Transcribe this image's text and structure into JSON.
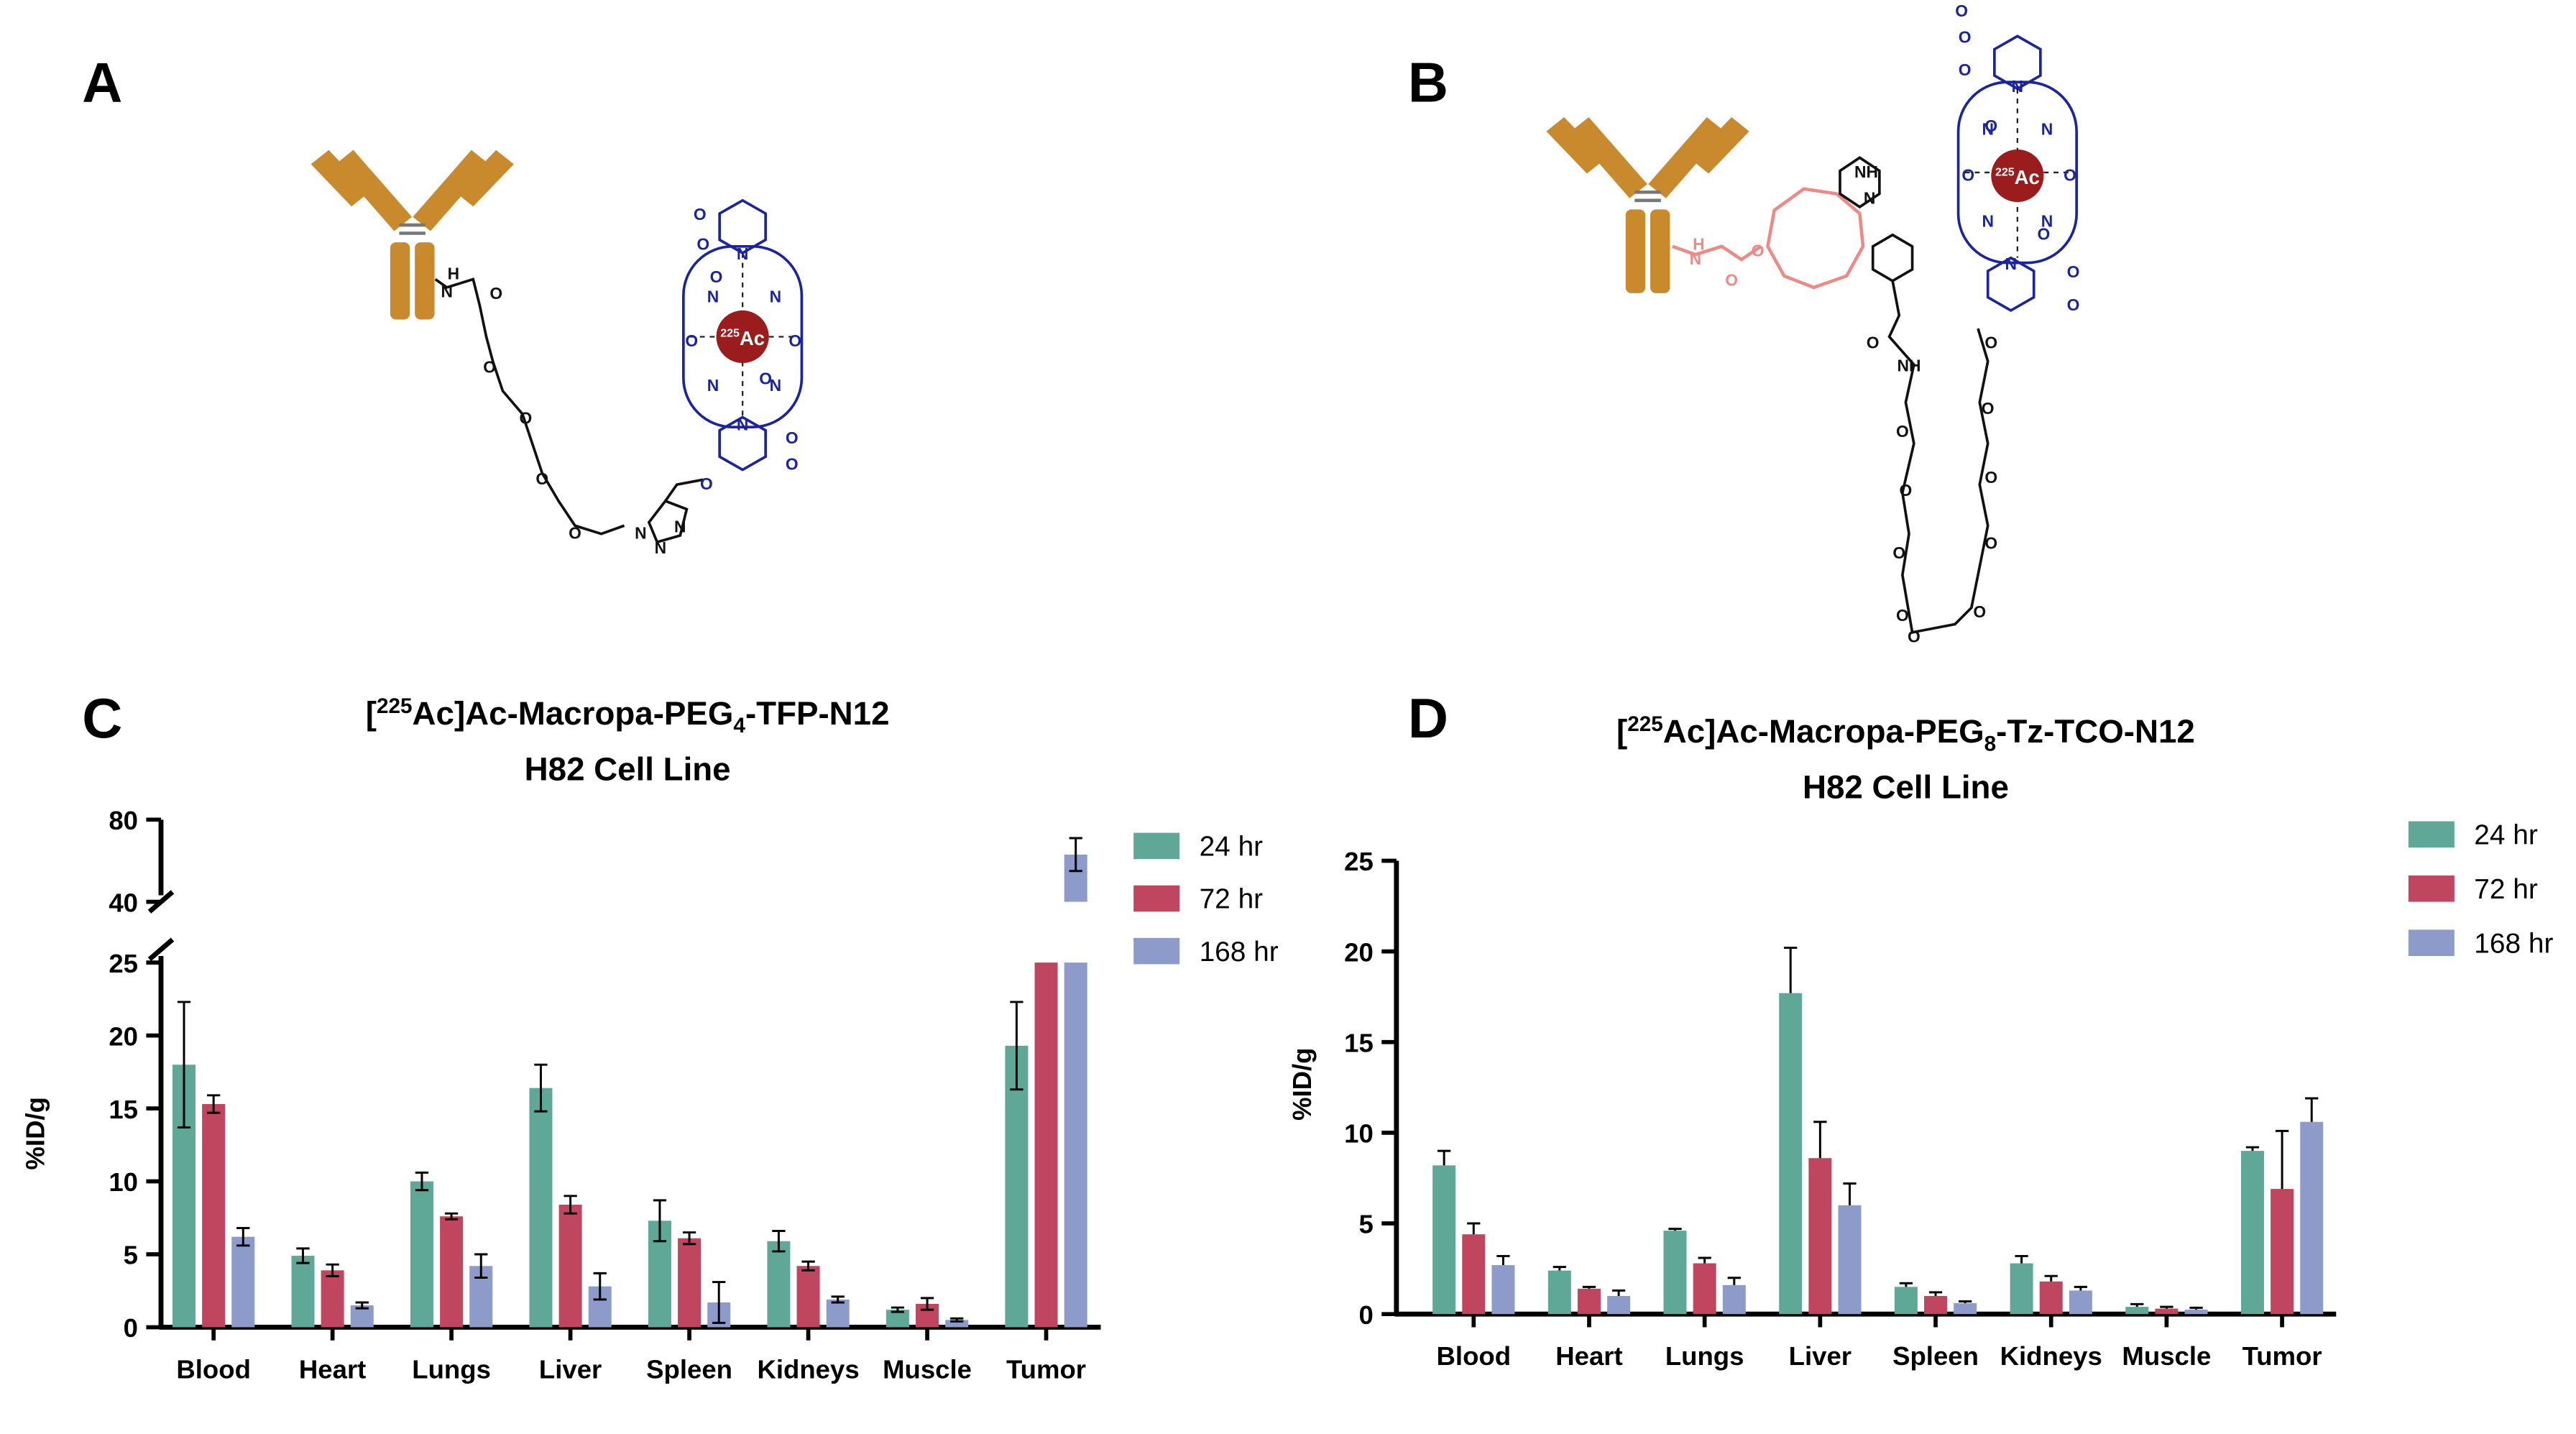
{
  "panel_labels": [
    "A",
    "B",
    "C",
    "D"
  ],
  "structure_a": {
    "isotope": "225",
    "metal": "Ac",
    "atoms": [
      "H",
      "N",
      "O",
      "O",
      "O",
      "O",
      "O",
      "N",
      "N",
      "N",
      "O",
      "N",
      "N",
      "N",
      "N",
      "N",
      "N",
      "O",
      "O",
      "O",
      "O",
      "O",
      "O",
      "O",
      "O"
    ]
  },
  "structure_b": {
    "isotope": "225",
    "metal": "Ac",
    "atoms": [
      "H",
      "N",
      "O",
      "O",
      "NH",
      "N",
      "O",
      "NH",
      "O",
      "O",
      "O",
      "O",
      "O",
      "O",
      "O",
      "O",
      "O",
      "O",
      "O",
      "N",
      "N",
      "N",
      "N",
      "N",
      "N",
      "O",
      "O",
      "O",
      "O",
      "O",
      "O",
      "O",
      "O"
    ]
  },
  "chart_data": [
    {
      "type": "bar",
      "title": "[225Ac]Ac-Macropa-PEG4-TFP-N12",
      "subtitle": "H82 Cell Line",
      "y_label": "%ID/g",
      "categories": [
        "Blood",
        "Heart",
        "Lungs",
        "Liver",
        "Spleen",
        "Kidneys",
        "Muscle",
        "Tumor"
      ],
      "series": [
        {
          "name": "24 hr",
          "color": "#5fa898",
          "values": [
            18.0,
            4.9,
            10.0,
            16.4,
            7.3,
            5.9,
            1.2,
            19.3
          ],
          "errors": [
            4.3,
            0.5,
            0.6,
            1.6,
            1.4,
            0.7,
            0.15,
            3.0
          ]
        },
        {
          "name": "72 hr",
          "color": "#c0455f",
          "values": [
            15.3,
            3.9,
            7.6,
            8.4,
            6.1,
            4.2,
            1.6,
            30
          ],
          "errors": [
            0.6,
            0.4,
            0.2,
            0.6,
            0.4,
            0.3,
            0.4,
            null
          ]
        },
        {
          "name": "168 hr",
          "color": "#8c9bc9",
          "values": [
            6.2,
            1.5,
            4.2,
            2.8,
            1.7,
            1.9,
            0.5,
            63
          ],
          "errors": [
            0.6,
            0.2,
            0.8,
            0.9,
            1.4,
            0.2,
            0.1,
            8
          ]
        }
      ],
      "ylim": [
        0,
        80
      ],
      "yticks": [
        0,
        5,
        10,
        15,
        20,
        25,
        40,
        80
      ],
      "y_break": [
        25,
        40
      ],
      "error_bars": "both"
    },
    {
      "type": "bar",
      "title": "[225Ac]Ac-Macropa-PEG8-Tz-TCO-N12",
      "subtitle": "H82 Cell Line",
      "y_label": "%ID/g",
      "categories": [
        "Blood",
        "Heart",
        "Lungs",
        "Liver",
        "Spleen",
        "Kidneys",
        "Muscle",
        "Tumor"
      ],
      "series": [
        {
          "name": "24 hr",
          "color": "#5fa898",
          "values": [
            8.2,
            2.4,
            4.6,
            17.7,
            1.5,
            2.8,
            0.4,
            9.0
          ],
          "errors": [
            0.8,
            0.2,
            0.1,
            2.5,
            0.2,
            0.4,
            0.15,
            0.2
          ]
        },
        {
          "name": "72 hr",
          "color": "#c0455f",
          "values": [
            4.4,
            1.4,
            2.8,
            8.6,
            1.0,
            1.8,
            0.3,
            6.9
          ],
          "errors": [
            0.6,
            0.1,
            0.3,
            2.0,
            0.2,
            0.3,
            0.1,
            3.2
          ]
        },
        {
          "name": "168 hr",
          "color": "#8c9bc9",
          "values": [
            2.7,
            1.0,
            1.6,
            6.0,
            0.6,
            1.3,
            0.25,
            10.6
          ],
          "errors": [
            0.5,
            0.3,
            0.4,
            1.2,
            0.1,
            0.2,
            0.1,
            1.3
          ]
        }
      ],
      "ylim": [
        0,
        25
      ],
      "yticks": [
        0,
        5,
        10,
        15,
        20,
        25
      ],
      "error_bars": "upper"
    }
  ]
}
